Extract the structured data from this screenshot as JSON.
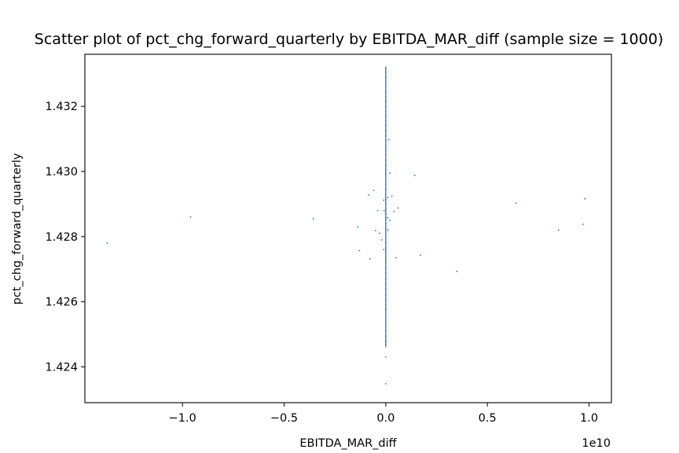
{
  "chart_data": {
    "type": "scatter",
    "title": "Scatter plot of pct_chg_forward_quarterly by EBITDA_MAR_diff (sample size = 1000)",
    "xlabel": "EBITDA_MAR_diff",
    "ylabel": "pct_chg_forward_quarterly",
    "x_offset_label": "1e10",
    "x_scale": 10000000000,
    "xlim": [
      -1.48,
      1.11
    ],
    "ylim": [
      1.4229,
      1.4336
    ],
    "xticks": [
      -1.0,
      -0.5,
      0.0,
      0.5,
      1.0
    ],
    "xtick_labels": [
      "−1.0",
      "−0.5",
      "0.0",
      "0.5",
      "1.0"
    ],
    "yticks": [
      1.424,
      1.426,
      1.428,
      1.43,
      1.432
    ],
    "ytick_labels": [
      "1.424",
      "1.426",
      "1.428",
      "1.430",
      "1.432"
    ],
    "grid": false,
    "legend": "none",
    "color": "#1f77b4",
    "points": [
      [
        -1.37,
        1.4278
      ],
      [
        -0.96,
        1.4286
      ],
      [
        -0.356,
        1.42855
      ],
      [
        -0.137,
        1.4283
      ],
      [
        -0.13,
        1.42757
      ],
      [
        -0.085,
        1.42928
      ],
      [
        -0.078,
        1.42732
      ],
      [
        -0.06,
        1.42942
      ],
      [
        -0.05,
        1.42818
      ],
      [
        -0.04,
        1.4288
      ],
      [
        -0.03,
        1.4281
      ],
      [
        -0.02,
        1.4279
      ],
      [
        0.02,
        1.42995
      ],
      [
        0.03,
        1.42924
      ],
      [
        0.04,
        1.42877
      ],
      [
        0.05,
        1.42735
      ],
      [
        0.06,
        1.42888
      ],
      [
        0.143,
        1.42988
      ],
      [
        0.17,
        1.42743
      ],
      [
        0.35,
        1.42693
      ],
      [
        0.64,
        1.42903
      ],
      [
        0.85,
        1.4282
      ],
      [
        0.97,
        1.42838
      ],
      [
        0.98,
        1.42916
      ],
      [
        0.0,
        1.42348
      ],
      [
        0.0,
        1.4243
      ],
      [
        0.0,
        1.42468
      ],
      [
        0.0,
        1.4248
      ],
      [
        0.0,
        1.42495
      ],
      [
        0.0,
        1.4251
      ],
      [
        0.0,
        1.42525
      ],
      [
        0.0,
        1.4254
      ],
      [
        0.0,
        1.42558
      ],
      [
        0.0,
        1.42575
      ],
      [
        0.0,
        1.4259
      ],
      [
        0.0,
        1.42605
      ],
      [
        0.0,
        1.42622
      ],
      [
        0.0,
        1.4264
      ],
      [
        0.0,
        1.42655
      ],
      [
        0.0,
        1.4267
      ],
      [
        0.0,
        1.42688
      ],
      [
        0.0,
        1.42705
      ],
      [
        0.0,
        1.4272
      ],
      [
        0.0,
        1.42735
      ],
      [
        0.0,
        1.4275
      ],
      [
        0.0,
        1.42765
      ],
      [
        0.0,
        1.4278
      ],
      [
        0.0,
        1.42795
      ],
      [
        0.0,
        1.4281
      ],
      [
        0.0,
        1.42825
      ],
      [
        0.0,
        1.4284
      ],
      [
        0.0,
        1.42855
      ],
      [
        0.0,
        1.4287
      ],
      [
        0.0,
        1.42885
      ],
      [
        0.0,
        1.429
      ],
      [
        0.0,
        1.42915
      ],
      [
        0.0,
        1.4293
      ],
      [
        0.0,
        1.42945
      ],
      [
        0.0,
        1.4296
      ],
      [
        0.0,
        1.42975
      ],
      [
        0.0,
        1.4299
      ],
      [
        0.0,
        1.43005
      ],
      [
        0.0,
        1.4302
      ],
      [
        0.0,
        1.43035
      ],
      [
        0.0,
        1.4305
      ],
      [
        0.0,
        1.43065
      ],
      [
        0.0,
        1.4308
      ],
      [
        0.0,
        1.43095
      ],
      [
        0.0,
        1.4311
      ],
      [
        0.0,
        1.43125
      ],
      [
        0.0,
        1.4314
      ],
      [
        0.0,
        1.43155
      ],
      [
        0.0,
        1.4317
      ],
      [
        0.0,
        1.43185
      ],
      [
        0.0,
        1.432
      ],
      [
        0.0,
        1.43215
      ],
      [
        0.0,
        1.4323
      ],
      [
        0.0,
        1.43245
      ],
      [
        0.0,
        1.4326
      ],
      [
        0.0,
        1.43275
      ],
      [
        0.0,
        1.4329
      ],
      [
        0.0,
        1.43305
      ],
      [
        0.0,
        1.4332
      ],
      [
        0.01,
        1.42858
      ],
      [
        -0.01,
        1.42912
      ],
      [
        0.01,
        1.4282
      ],
      [
        -0.01,
        1.4276
      ],
      [
        0.015,
        1.43098
      ],
      [
        0.01,
        1.4292
      ],
      [
        -0.008,
        1.4288
      ],
      [
        0.02,
        1.4285
      ]
    ],
    "band": {
      "x": 0.0,
      "y_min": 1.4246,
      "y_max": 1.4332
    }
  }
}
